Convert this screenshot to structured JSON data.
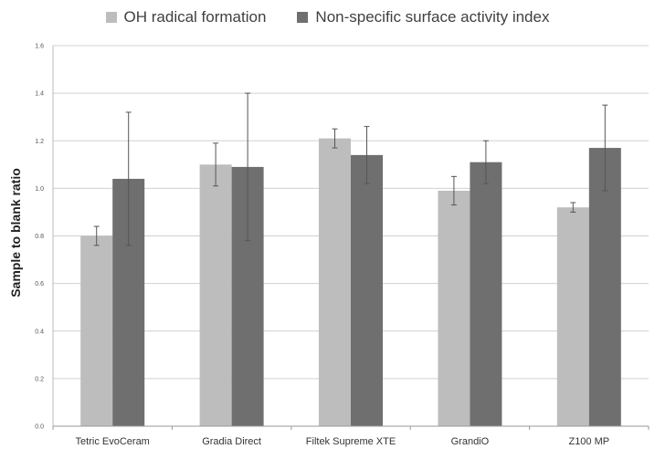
{
  "chart_data": {
    "type": "bar",
    "title": "",
    "xlabel": "",
    "ylabel": "Sample to blank ratio",
    "ylim": [
      0,
      1.6
    ],
    "yticks": [
      "0.0",
      "0.2",
      "0.4",
      "0.6",
      "0.8",
      "1.0",
      "1.2",
      "1.4",
      "1.6"
    ],
    "grid": true,
    "legend_position": "top",
    "categories": [
      "Tetric EvoCeram",
      "Gradia Direct",
      "Filtek Supreme XTE",
      "GrandiO",
      "Z100 MP"
    ],
    "series": [
      {
        "name": "OH radical formation",
        "color": "#bdbdbd",
        "values": [
          0.8,
          1.1,
          1.21,
          0.99,
          0.92
        ],
        "error": [
          0.04,
          0.09,
          0.04,
          0.06,
          0.02
        ]
      },
      {
        "name": "Non-specific surface activity index",
        "color": "#6f6f6f",
        "values": [
          1.04,
          1.09,
          1.14,
          1.11,
          1.17
        ],
        "error": [
          0.28,
          0.31,
          0.12,
          0.09,
          0.18
        ]
      }
    ]
  }
}
